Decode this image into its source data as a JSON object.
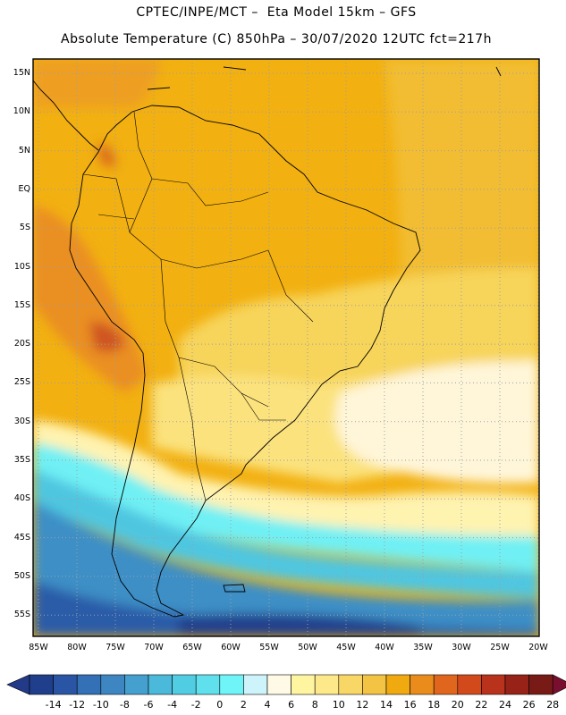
{
  "header": {
    "line1": "CPTEC/INPE/MCT –  Eta Model 15km – GFS",
    "line2": "Absolute Temperature (C) 850hPa – 30/07/2020 12UTC fct=217h"
  },
  "map": {
    "lat_labels": [
      "15N",
      "10N",
      "5N",
      "EQ",
      "5S",
      "10S",
      "15S",
      "20S",
      "25S",
      "30S",
      "35S",
      "40S",
      "45S",
      "50S",
      "55S"
    ],
    "lon_labels": [
      "85W",
      "80W",
      "75W",
      "70W",
      "65W",
      "60W",
      "55W",
      "50W",
      "45W",
      "40W",
      "35W",
      "30W",
      "25W",
      "20W"
    ]
  },
  "colorbar": {
    "labels": [
      "-14",
      "-12",
      "-10",
      "-8",
      "-6",
      "-4",
      "-2",
      "0",
      "2",
      "4",
      "6",
      "8",
      "10",
      "12",
      "14",
      "16",
      "18",
      "20",
      "22",
      "24",
      "26",
      "28"
    ],
    "colors": [
      "#1f3e8c",
      "#2a55a5",
      "#3470b6",
      "#3d86c2",
      "#45a0cf",
      "#4ab9da",
      "#50cde3",
      "#5fe0ec",
      "#6ff5f8",
      "#cdf3fb",
      "#fffae6",
      "#fff5a0",
      "#fde98a",
      "#f9d766",
      "#f3c443",
      "#f0aa10",
      "#ea8c1c",
      "#e0661d",
      "#d24a1c",
      "#b8321c",
      "#962218",
      "#781b16"
    ],
    "under_color": "#233a89",
    "over_color": "#7a0e2e"
  },
  "colors": {
    "frame": "#000000",
    "grid": "#9aa0a6"
  }
}
